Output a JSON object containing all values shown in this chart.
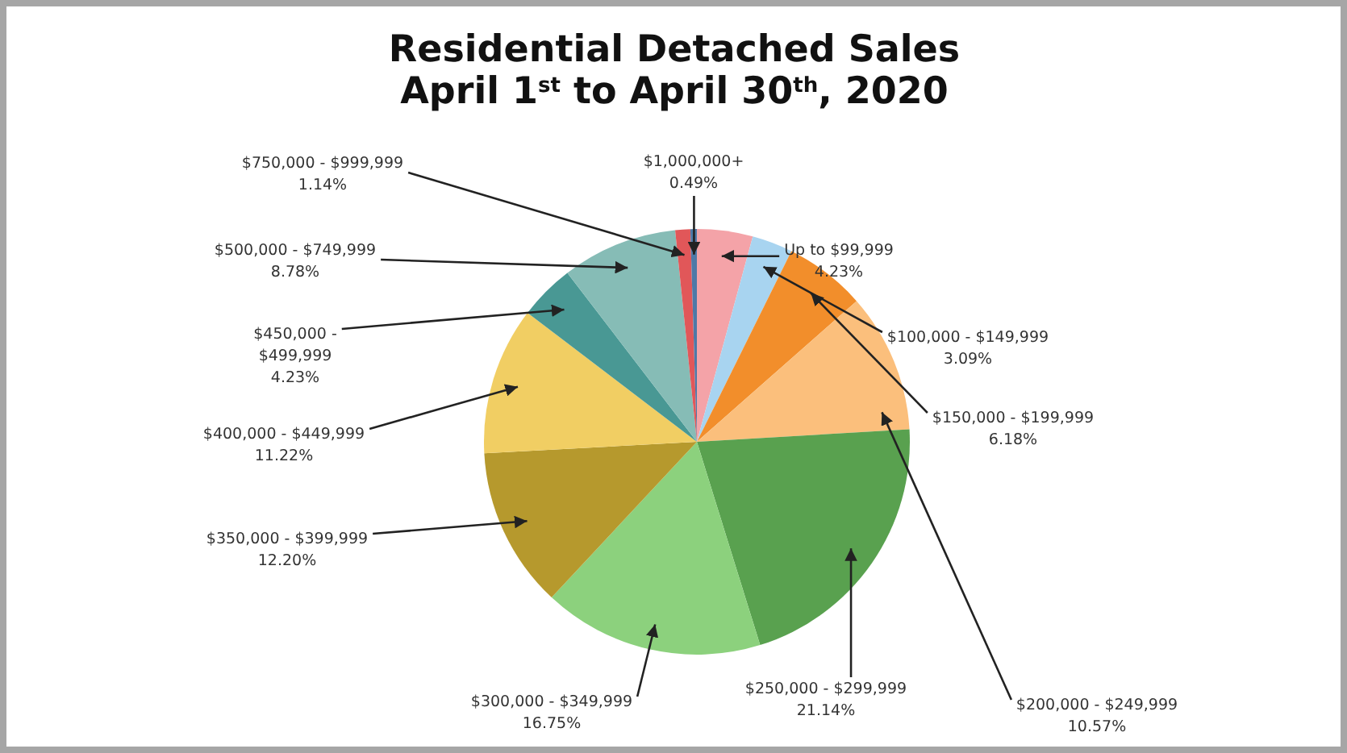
{
  "chart_data": {
    "type": "pie",
    "title": "Residential Detached Sales\nApril 1$^{st}$ to April 30$^{th}$, 2020",
    "categories": [
      "Up to $99,999",
      "$100,000 - $149,999",
      "$150,000 - $199,999",
      "$200,000 - $249,999",
      "$250,000 - $299,999",
      "$300,000 - $349,999",
      "$350,000 - $399,999",
      "$400,000 - $449,999",
      "$450,000 - $499,999",
      "$500,000 - $749,999",
      "$750,000 - $999,999",
      "$1,000,000+"
    ],
    "values": [
      4.23,
      3.09,
      6.18,
      10.57,
      21.14,
      16.75,
      12.2,
      11.22,
      4.23,
      8.78,
      1.14,
      0.49
    ],
    "colors": [
      "#f4a3a8",
      "#a8d4f0",
      "#f28e2b",
      "#fbbf7c",
      "#59a14f",
      "#8cd17d",
      "#b6992d",
      "#f1ce63",
      "#499894",
      "#86bcb6",
      "#e15759",
      "#4e79a7"
    ],
    "value_labels": [
      "4.23%",
      "3.09%",
      "6.18%",
      "10.57%",
      "21.14%",
      "16.75%",
      "12.20%",
      "11.22%",
      "4.23%",
      "8.78%",
      "1.14%",
      "0.49%"
    ]
  }
}
